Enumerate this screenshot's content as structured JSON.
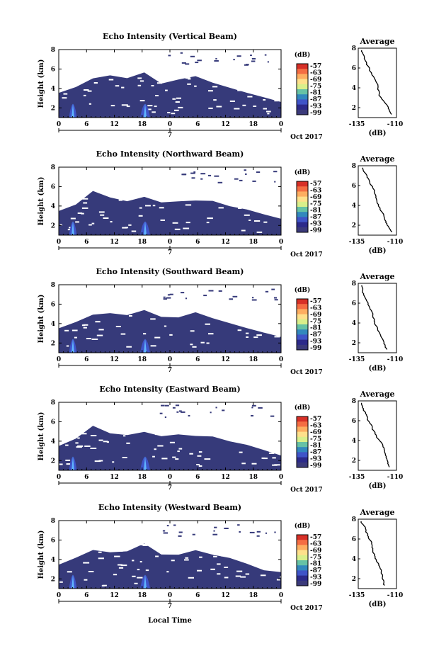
{
  "figure": {
    "time_axis_label": "Local Time",
    "date_label": "Oct 2017",
    "height_axis_label": "Height (km)",
    "colorbar_unit": "(dB)",
    "average_title": "Average",
    "average_xlabel": "(dB)"
  },
  "colorbar": {
    "ticks": [
      "-57",
      "-63",
      "-69",
      "-75",
      "-81",
      "-87",
      "-93",
      "-99"
    ],
    "colors": [
      "#d73027",
      "#f46d43",
      "#fdae61",
      "#fee08b",
      "#d9ef8b",
      "#66c2a5",
      "#3288bd",
      "#3f54c8",
      "#2c2a8a",
      "#3b3a7a"
    ]
  },
  "chart_data": [
    {
      "type": "heatmap",
      "title": "Echo Intensity (Vertical Beam)",
      "ylabel": "Height (km)",
      "xticks": [
        "0",
        "6",
        "12",
        "18",
        "0",
        "6",
        "12",
        "18",
        "0"
      ],
      "day_tick": "7",
      "yticks": [
        "2",
        "4",
        "6",
        "8"
      ],
      "ylim": [
        1,
        8
      ],
      "top_km": [
        3.5,
        4.2,
        5.0,
        5.2,
        5.0,
        5.6,
        4.6,
        4.8,
        5.2,
        4.5,
        4.0,
        3.6,
        3.0,
        2.7
      ],
      "avg_profile": {
        "title": "Average",
        "xlabel": "(dB)",
        "xticks": [
          "-135",
          "-110"
        ],
        "yticks": [
          "2",
          "4",
          "6",
          "8"
        ]
      }
    },
    {
      "type": "heatmap",
      "title": "Echo Intensity (Northward Beam)",
      "ylabel": "Height (km)",
      "xticks": [
        "0",
        "6",
        "12",
        "18",
        "0",
        "6",
        "12",
        "18",
        "0"
      ],
      "day_tick": "7",
      "yticks": [
        "2",
        "4",
        "6",
        "8"
      ],
      "ylim": [
        1,
        8
      ],
      "top_km": [
        3.5,
        4.3,
        5.5,
        5.0,
        4.6,
        4.8,
        4.4,
        4.5,
        4.7,
        4.4,
        4.0,
        3.6,
        3.0,
        2.6
      ],
      "avg_profile": {
        "title": "Average",
        "xlabel": "(dB)",
        "xticks": [
          "-135",
          "-110"
        ],
        "yticks": [
          "2",
          "4",
          "6",
          "8"
        ]
      }
    },
    {
      "type": "heatmap",
      "title": "Echo Intensity (Southward Beam)",
      "ylabel": "Height (km)",
      "xticks": [
        "0",
        "6",
        "12",
        "18",
        "0",
        "6",
        "12",
        "18",
        "0"
      ],
      "day_tick": "7",
      "yticks": [
        "2",
        "4",
        "6",
        "8"
      ],
      "ylim": [
        1,
        8
      ],
      "top_km": [
        3.4,
        4.2,
        5.0,
        5.2,
        5.0,
        5.5,
        4.6,
        4.7,
        5.1,
        4.6,
        4.0,
        3.6,
        3.0,
        2.6
      ],
      "avg_profile": {
        "title": "Average",
        "xlabel": "(dB)",
        "xticks": [
          "-135",
          "-110"
        ],
        "yticks": [
          "2",
          "4",
          "6",
          "8"
        ]
      }
    },
    {
      "type": "heatmap",
      "title": "Echo Intensity (Eastward Beam)",
      "ylabel": "Height (km)",
      "xticks": [
        "0",
        "6",
        "12",
        "18",
        "0",
        "6",
        "12",
        "18",
        "0"
      ],
      "day_tick": "7",
      "yticks": [
        "2",
        "4",
        "6",
        "8"
      ],
      "ylim": [
        1,
        8
      ],
      "top_km": [
        3.6,
        4.3,
        5.5,
        4.8,
        4.6,
        5.0,
        4.5,
        4.6,
        4.5,
        4.4,
        4.0,
        3.6,
        3.0,
        2.6
      ],
      "avg_profile": {
        "title": "Average",
        "xlabel": "(dB)",
        "xticks": [
          "-135",
          "-110"
        ],
        "yticks": [
          "2",
          "4",
          "6",
          "8"
        ]
      }
    },
    {
      "type": "heatmap",
      "title": "Echo Intensity (Westward Beam)",
      "ylabel": "Height (km)",
      "xticks": [
        "0",
        "6",
        "12",
        "18",
        "0",
        "6",
        "12",
        "18",
        "0"
      ],
      "day_tick": "7",
      "yticks": [
        "2",
        "4",
        "6",
        "8"
      ],
      "ylim": [
        1,
        8
      ],
      "top_km": [
        3.5,
        4.3,
        5.0,
        4.8,
        4.8,
        5.5,
        4.6,
        4.6,
        4.9,
        4.5,
        4.0,
        3.6,
        3.0,
        2.6
      ],
      "avg_profile": {
        "title": "Average",
        "xlabel": "(dB)",
        "xticks": [
          "-135",
          "-110"
        ],
        "yticks": [
          "2",
          "4",
          "6",
          "8"
        ]
      }
    }
  ]
}
